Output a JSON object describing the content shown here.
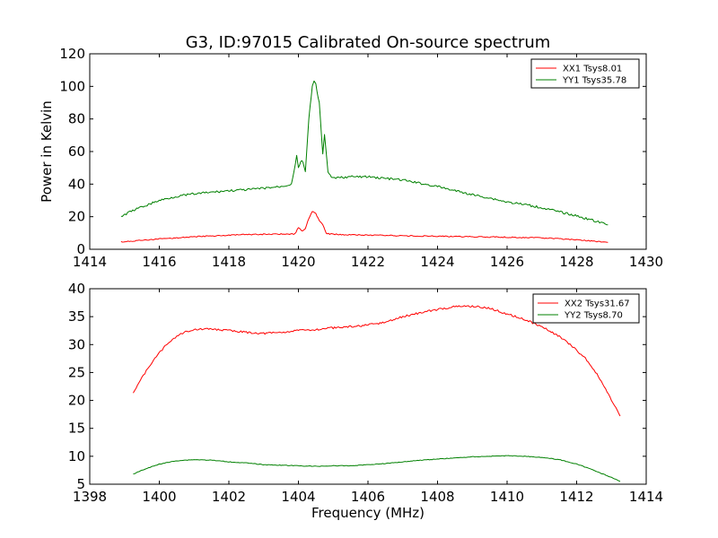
{
  "title": "G3, ID:97015 Calibrated On-source spectrum",
  "xlabel": "Frequency (MHz)",
  "colors": {
    "red": "#ff0000",
    "green": "#008000"
  },
  "chart_data": [
    {
      "type": "line",
      "title": "G3, ID:97015 Calibrated On-source spectrum",
      "xlabel": "",
      "ylabel": "Power in Kelvin",
      "xlim": [
        1414,
        1430
      ],
      "ylim": [
        0,
        120
      ],
      "xticks": [
        1414,
        1416,
        1418,
        1420,
        1422,
        1424,
        1426,
        1428,
        1430
      ],
      "yticks": [
        0,
        20,
        40,
        60,
        80,
        100,
        120
      ],
      "grid": false,
      "legend": "top-right",
      "series": [
        {
          "name": "XX1 Tsys8.01",
          "color": "#ff0000",
          "x": [
            1414.9,
            1415.5,
            1416.0,
            1416.5,
            1417.0,
            1417.5,
            1418.0,
            1418.5,
            1419.0,
            1419.5,
            1419.9,
            1420.0,
            1420.1,
            1420.2,
            1420.3,
            1420.4,
            1420.5,
            1420.6,
            1420.7,
            1420.8,
            1420.9,
            1421.2,
            1422.0,
            1423.0,
            1424.0,
            1425.0,
            1426.0,
            1427.0,
            1427.5,
            1428.0,
            1428.5,
            1428.9
          ],
          "values": [
            4.5,
            5.5,
            6.3,
            7.0,
            7.7,
            8.2,
            8.6,
            9.0,
            9.2,
            9.3,
            9.4,
            13.5,
            11.0,
            12.5,
            19.0,
            23.5,
            22.0,
            17.5,
            15.0,
            10.0,
            9.4,
            9.0,
            8.7,
            8.3,
            8.0,
            7.7,
            7.4,
            7.0,
            6.5,
            5.8,
            5.0,
            4.2
          ]
        },
        {
          "name": "YY1 Tsys35.78",
          "color": "#008000",
          "x": [
            1414.9,
            1415.2,
            1415.5,
            1416.0,
            1416.5,
            1417.0,
            1417.5,
            1418.0,
            1418.5,
            1419.0,
            1419.5,
            1419.8,
            1419.95,
            1420.0,
            1420.1,
            1420.2,
            1420.3,
            1420.4,
            1420.45,
            1420.5,
            1420.6,
            1420.7,
            1420.75,
            1420.85,
            1420.95,
            1421.2,
            1421.5,
            1422.0,
            1422.5,
            1423.0,
            1423.5,
            1424.0,
            1424.5,
            1425.0,
            1425.5,
            1426.0,
            1426.5,
            1427.0,
            1427.5,
            1428.0,
            1428.5,
            1428.9
          ],
          "values": [
            20.0,
            23.5,
            26.0,
            30.0,
            32.5,
            34.0,
            35.0,
            36.0,
            36.5,
            37.5,
            38.5,
            40.0,
            57.0,
            50.0,
            55.0,
            48.0,
            80.0,
            100.0,
            103.0,
            101.0,
            90.0,
            58.0,
            70.0,
            48.0,
            43.5,
            44.0,
            44.5,
            44.5,
            43.5,
            42.5,
            40.5,
            38.5,
            36.0,
            33.5,
            31.5,
            29.0,
            27.5,
            25.5,
            23.0,
            20.5,
            17.5,
            15.0
          ]
        }
      ]
    },
    {
      "type": "line",
      "title": "",
      "xlabel": "Frequency (MHz)",
      "ylabel": "",
      "xlim": [
        1398,
        1414
      ],
      "ylim": [
        5,
        40
      ],
      "xticks": [
        1398,
        1400,
        1402,
        1404,
        1406,
        1408,
        1410,
        1412,
        1414
      ],
      "yticks": [
        5,
        10,
        15,
        20,
        25,
        30,
        35,
        40
      ],
      "grid": false,
      "legend": "top-right",
      "series": [
        {
          "name": "XX2 Tsys31.67",
          "color": "#ff0000",
          "x": [
            1399.25,
            1399.5,
            1399.75,
            1400.0,
            1400.25,
            1400.5,
            1400.75,
            1401.0,
            1401.5,
            1402.0,
            1402.5,
            1403.0,
            1403.5,
            1404.0,
            1404.5,
            1405.0,
            1405.5,
            1406.0,
            1406.5,
            1407.0,
            1407.5,
            1408.0,
            1408.5,
            1409.0,
            1409.5,
            1410.0,
            1410.5,
            1411.0,
            1411.5,
            1412.0,
            1412.25,
            1412.5,
            1412.75,
            1413.0,
            1413.25
          ],
          "values": [
            21.5,
            24.0,
            26.5,
            28.5,
            30.3,
            31.5,
            32.3,
            32.7,
            32.8,
            32.5,
            32.2,
            32.0,
            32.2,
            32.5,
            32.7,
            33.0,
            33.2,
            33.5,
            34.0,
            35.0,
            35.7,
            36.3,
            36.8,
            36.9,
            36.5,
            35.5,
            34.5,
            33.2,
            31.5,
            29.0,
            27.5,
            25.5,
            23.0,
            20.0,
            17.2
          ]
        },
        {
          "name": "YY2 Tsys8.70",
          "color": "#008000",
          "x": [
            1399.25,
            1399.5,
            1400.0,
            1400.5,
            1401.0,
            1401.5,
            1402.0,
            1402.5,
            1403.0,
            1403.5,
            1404.0,
            1404.5,
            1405.0,
            1405.5,
            1406.0,
            1406.5,
            1407.0,
            1407.5,
            1408.0,
            1408.5,
            1409.0,
            1409.5,
            1410.0,
            1410.5,
            1411.0,
            1411.5,
            1412.0,
            1412.5,
            1413.0,
            1413.25
          ],
          "values": [
            6.8,
            7.5,
            8.6,
            9.2,
            9.4,
            9.3,
            9.0,
            8.8,
            8.5,
            8.4,
            8.3,
            8.2,
            8.3,
            8.3,
            8.5,
            8.7,
            9.0,
            9.3,
            9.5,
            9.7,
            9.9,
            10.0,
            10.1,
            10.0,
            9.8,
            9.4,
            8.6,
            7.5,
            6.2,
            5.5
          ]
        }
      ]
    }
  ]
}
